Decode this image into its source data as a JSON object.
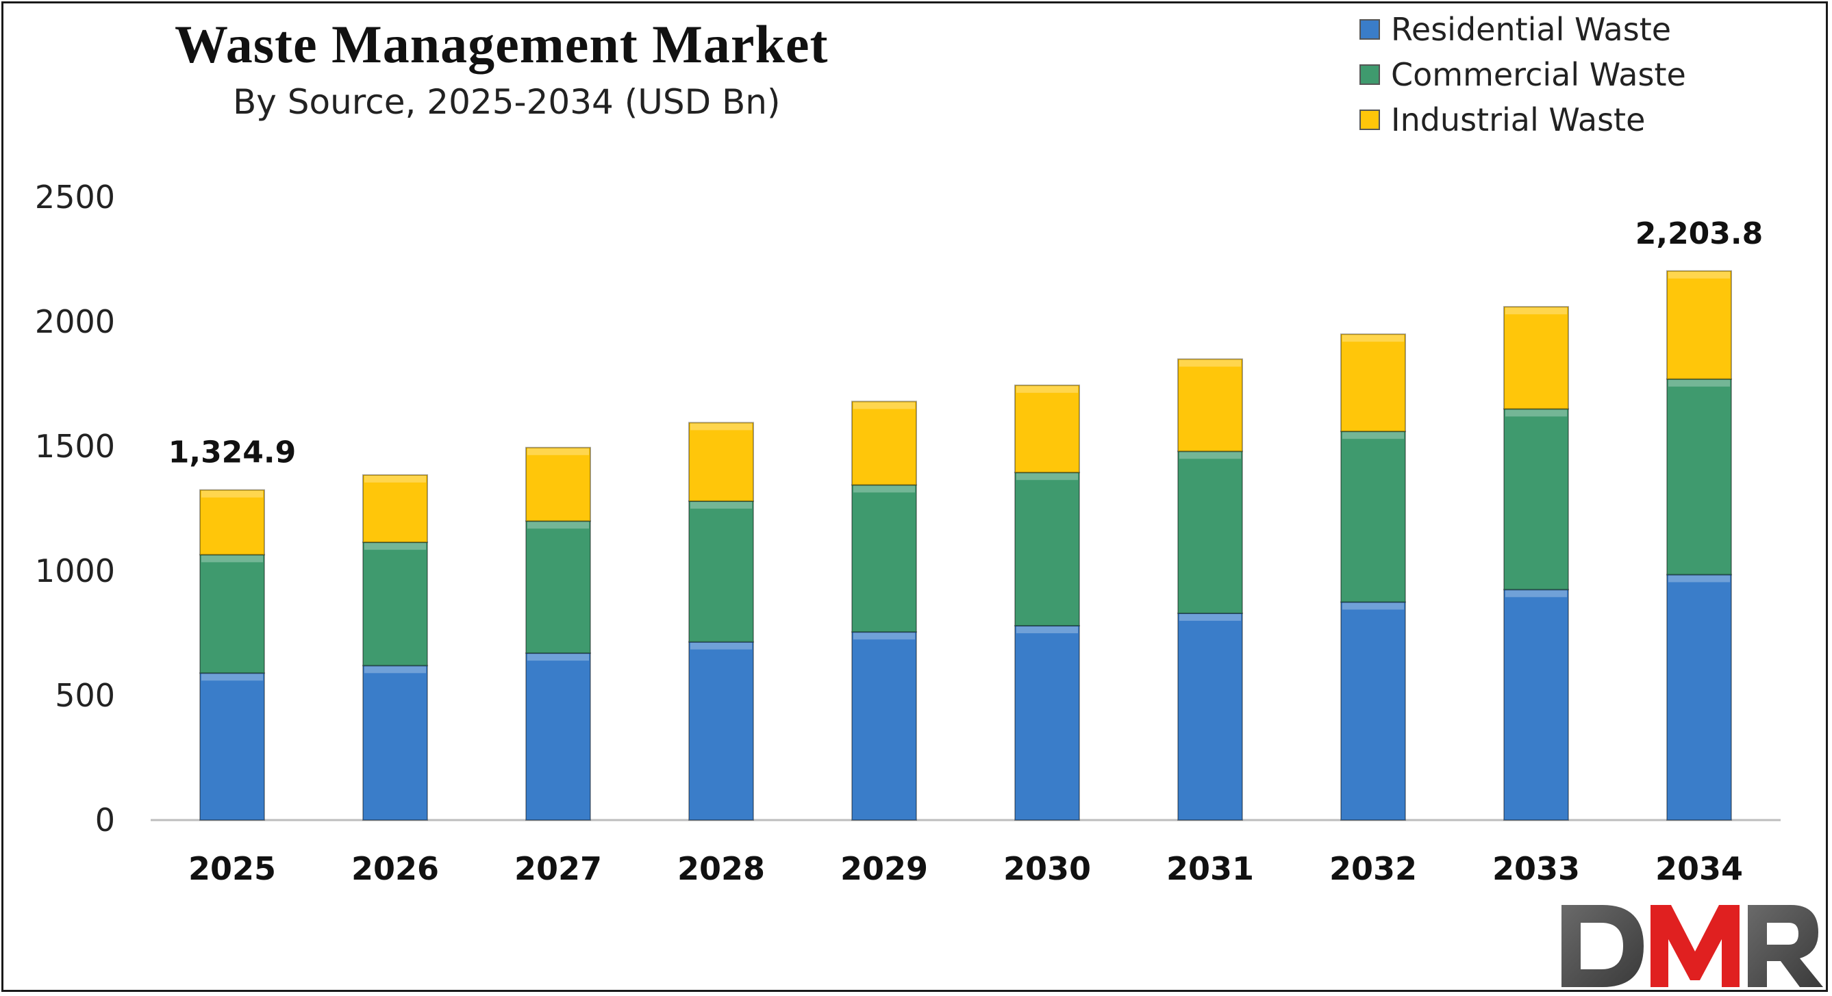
{
  "chart_data": {
    "type": "bar",
    "stacked": true,
    "title": "Waste Management Market",
    "subtitle": "By Source, 2025-2034 (USD Bn)",
    "categories": [
      "2025",
      "2026",
      "2027",
      "2028",
      "2029",
      "2030",
      "2031",
      "2032",
      "2033",
      "2034"
    ],
    "series": [
      {
        "name": "Residential Waste",
        "color": "#3a7dc9",
        "values": [
          590,
          620,
          670,
          715,
          755,
          780,
          830,
          875,
          925,
          985
        ]
      },
      {
        "name": "Commercial Waste",
        "color": "#3f9a6e",
        "values": [
          475,
          495,
          530,
          565,
          590,
          615,
          650,
          685,
          725,
          785
        ]
      },
      {
        "name": "Industrial Waste",
        "color": "#ffc60a",
        "values": [
          259.9,
          270,
          295,
          315,
          335,
          350,
          370,
          390,
          410,
          433.8
        ]
      }
    ],
    "data_labels": [
      {
        "category": "2025",
        "text": "1,324.9"
      },
      {
        "category": "2034",
        "text": "2,203.8"
      }
    ],
    "yticks": [
      "0",
      "500",
      "1000",
      "1500",
      "2000",
      "2500"
    ],
    "ylim": [
      0,
      2500
    ],
    "xlabel": "",
    "ylabel": "",
    "grid": false,
    "legend_position": "top-right"
  },
  "logo": {
    "text": "DMR",
    "color_dark": "#555555",
    "color_red": "#e02020"
  }
}
